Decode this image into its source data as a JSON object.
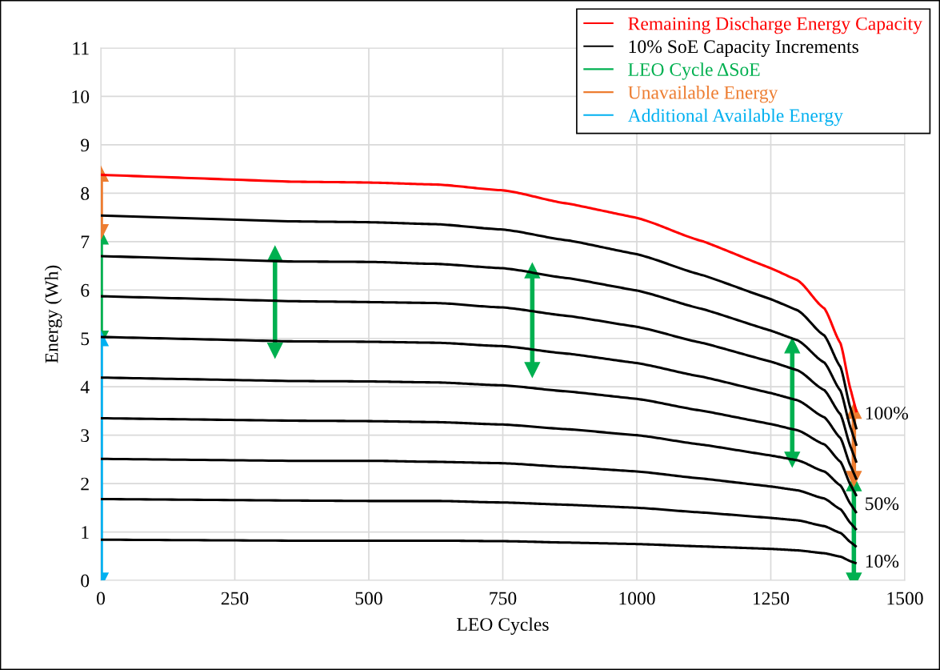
{
  "chart_data": {
    "type": "line",
    "xlabel": "LEO Cycles",
    "ylabel": "Energy (Wh)",
    "xlim": [
      0,
      1500
    ],
    "xticks": [
      0,
      250,
      500,
      750,
      1000,
      1250,
      1500
    ],
    "ylim": [
      0,
      11
    ],
    "yticks": [
      0,
      1,
      2,
      3,
      4,
      5,
      6,
      7,
      8,
      9,
      10,
      11
    ],
    "grid": true,
    "legend": "top right",
    "marker": "none",
    "line_style": "solid",
    "x": [
      0,
      350,
      500,
      625,
      750,
      875,
      1000,
      1125,
      1250,
      1300,
      1350,
      1380,
      1400,
      1410
    ],
    "series": [
      {
        "name": "Remaining Discharge Energy Capacity",
        "color": "#ff0000",
        "values": [
          8.38,
          8.24,
          8.22,
          8.18,
          8.06,
          7.78,
          7.49,
          7.0,
          6.45,
          6.2,
          5.62,
          4.9,
          3.9,
          3.47
        ]
      },
      {
        "name": "10% SoE Capacity Increments",
        "color": "#000000",
        "values": [
          7.54,
          7.42,
          7.4,
          7.36,
          7.25,
          7.02,
          6.74,
          6.3,
          5.81,
          5.58,
          5.06,
          4.41,
          3.51,
          3.12
        ]
      },
      {
        "color": "#000000",
        "values": [
          6.7,
          6.59,
          6.58,
          6.54,
          6.45,
          6.24,
          5.99,
          5.6,
          5.16,
          4.96,
          4.5,
          3.92,
          3.12,
          2.78
        ]
      },
      {
        "color": "#000000",
        "values": [
          5.87,
          5.77,
          5.75,
          5.73,
          5.64,
          5.46,
          5.24,
          4.9,
          4.52,
          4.34,
          3.93,
          3.43,
          2.73,
          2.43
        ]
      },
      {
        "color": "#000000",
        "values": [
          5.03,
          4.94,
          4.93,
          4.91,
          4.84,
          4.68,
          4.49,
          4.2,
          3.87,
          3.72,
          3.37,
          2.94,
          2.34,
          2.08
        ]
      },
      {
        "color": "#000000",
        "values": [
          4.19,
          4.12,
          4.11,
          4.09,
          4.03,
          3.9,
          3.75,
          3.5,
          3.23,
          3.1,
          2.81,
          2.45,
          1.95,
          1.74
        ]
      },
      {
        "color": "#000000",
        "values": [
          3.35,
          3.3,
          3.29,
          3.27,
          3.22,
          3.12,
          3.0,
          2.8,
          2.58,
          2.48,
          2.25,
          1.96,
          1.56,
          1.39
        ]
      },
      {
        "color": "#000000",
        "values": [
          2.51,
          2.47,
          2.47,
          2.45,
          2.42,
          2.34,
          2.25,
          2.1,
          1.94,
          1.86,
          1.69,
          1.47,
          1.17,
          1.04
        ]
      },
      {
        "color": "#000000",
        "values": [
          1.68,
          1.65,
          1.64,
          1.64,
          1.61,
          1.56,
          1.5,
          1.4,
          1.29,
          1.24,
          1.12,
          0.98,
          0.78,
          0.69
        ]
      },
      {
        "color": "#000000",
        "values": [
          0.84,
          0.82,
          0.82,
          0.82,
          0.81,
          0.78,
          0.75,
          0.7,
          0.65,
          0.62,
          0.56,
          0.49,
          0.39,
          0.35
        ]
      },
      {
        "name": "LEO Cycle ΔSoE",
        "color": "#00b050",
        "marker": "triangle",
        "x": [
          0,
          0,
          null,
          325,
          325,
          null,
          805,
          805,
          null,
          1290,
          1290,
          null,
          1405,
          1405
        ],
        "values": [
          5.0,
          7.1,
          null,
          4.75,
          6.75,
          null,
          4.35,
          6.4,
          null,
          2.5,
          4.85,
          null,
          0.0,
          2.0
        ]
      },
      {
        "name": "Unavailable Energy",
        "color": "#ed7d31",
        "marker": "triangle",
        "x": [
          0,
          0,
          null,
          1405,
          1405
        ],
        "values": [
          7.2,
          8.4,
          null,
          2.1,
          3.5
        ]
      },
      {
        "name": "Additional Available Energy",
        "color": "#00b0f0",
        "marker": "triangle",
        "x": [
          0,
          0
        ],
        "values": [
          0.0,
          5.0
        ]
      }
    ],
    "annotations": [
      "100%",
      "50%",
      "10%"
    ]
  }
}
